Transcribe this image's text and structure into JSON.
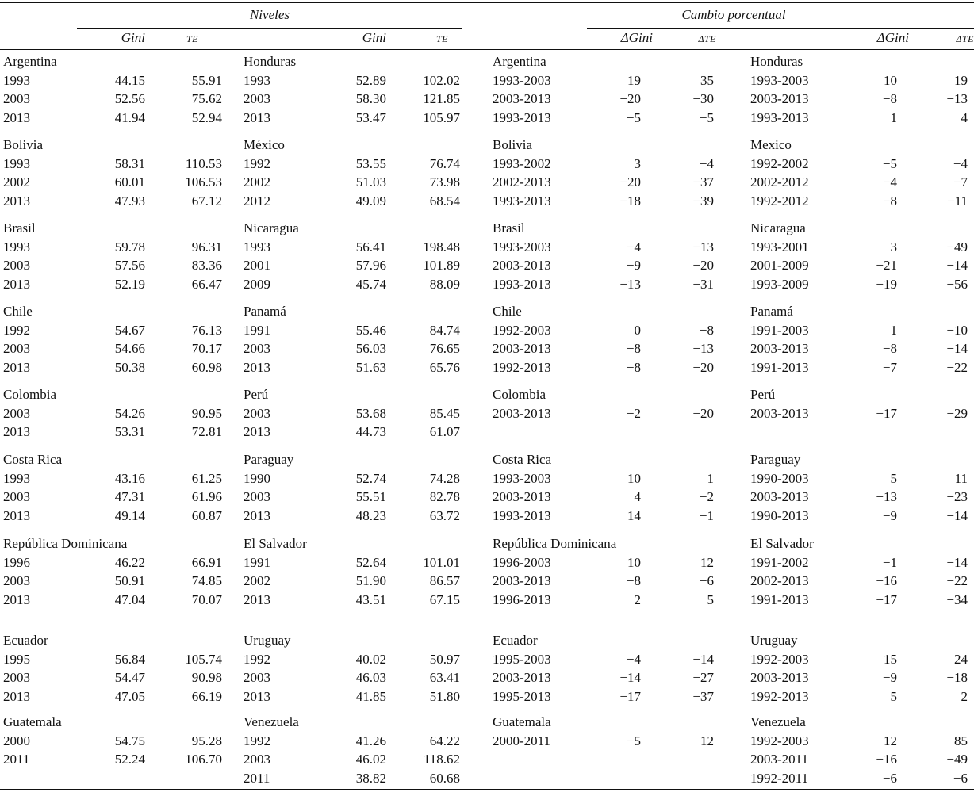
{
  "header": {
    "niveles": "Niveles",
    "cambio": "Cambio porcentual",
    "gini": "Gini",
    "te": "TE",
    "dgini": "ΔGini",
    "dte": "ΔTE"
  },
  "blocks": [
    {
      "nivA": {
        "country": "Argentina",
        "rows": [
          [
            "1993",
            "44.15",
            "55.91"
          ],
          [
            "2003",
            "52.56",
            "75.62"
          ],
          [
            "2013",
            "41.94",
            "52.94"
          ]
        ]
      },
      "nivB": {
        "country": "Honduras",
        "rows": [
          [
            "1993",
            "52.89",
            "102.02"
          ],
          [
            "2003",
            "58.30",
            "121.85"
          ],
          [
            "2013",
            "53.47",
            "105.97"
          ]
        ]
      },
      "camA": {
        "country": "Argentina",
        "rows": [
          [
            "1993-2003",
            "19",
            "35"
          ],
          [
            "2003-2013",
            "−20",
            "−30"
          ],
          [
            "1993-2013",
            "−5",
            "−5"
          ]
        ]
      },
      "camB": {
        "country": "Honduras",
        "rows": [
          [
            "1993-2003",
            "10",
            "19"
          ],
          [
            "2003-2013",
            "−8",
            "−13"
          ],
          [
            "1993-2013",
            "1",
            "4"
          ]
        ]
      }
    },
    {
      "nivA": {
        "country": "Bolivia",
        "rows": [
          [
            "1993",
            "58.31",
            "110.53"
          ],
          [
            "2002",
            "60.01",
            "106.53"
          ],
          [
            "2013",
            "47.93",
            "67.12"
          ]
        ]
      },
      "nivB": {
        "country": "México",
        "rows": [
          [
            "1992",
            "53.55",
            "76.74"
          ],
          [
            "2002",
            "51.03",
            "73.98"
          ],
          [
            "2012",
            "49.09",
            "68.54"
          ]
        ]
      },
      "camA": {
        "country": "Bolivia",
        "rows": [
          [
            "1993-2002",
            "3",
            "−4"
          ],
          [
            "2002-2013",
            "−20",
            "−37"
          ],
          [
            "1993-2013",
            "−18",
            "−39"
          ]
        ]
      },
      "camB": {
        "country": "Mexico",
        "rows": [
          [
            "1992-2002",
            "−5",
            "−4"
          ],
          [
            "2002-2012",
            "−4",
            "−7"
          ],
          [
            "1992-2012",
            "−8",
            "−11"
          ]
        ]
      }
    },
    {
      "nivA": {
        "country": "Brasil",
        "rows": [
          [
            "1993",
            "59.78",
            "96.31"
          ],
          [
            "2003",
            "57.56",
            "83.36"
          ],
          [
            "2013",
            "52.19",
            "66.47"
          ]
        ]
      },
      "nivB": {
        "country": "Nicaragua",
        "rows": [
          [
            "1993",
            "56.41",
            "198.48"
          ],
          [
            "2001",
            "57.96",
            "101.89"
          ],
          [
            "2009",
            "45.74",
            "88.09"
          ]
        ]
      },
      "camA": {
        "country": "Brasil",
        "rows": [
          [
            "1993-2003",
            "−4",
            "−13"
          ],
          [
            "2003-2013",
            "−9",
            "−20"
          ],
          [
            "1993-2013",
            "−13",
            "−31"
          ]
        ]
      },
      "camB": {
        "country": "Nicaragua",
        "rows": [
          [
            "1993-2001",
            "3",
            "−49"
          ],
          [
            "2001-2009",
            "−21",
            "−14"
          ],
          [
            "1993-2009",
            "−19",
            "−56"
          ]
        ]
      }
    },
    {
      "nivA": {
        "country": "Chile",
        "rows": [
          [
            "1992",
            "54.67",
            "76.13"
          ],
          [
            "2003",
            "54.66",
            "70.17"
          ],
          [
            "2013",
            "50.38",
            "60.98"
          ]
        ]
      },
      "nivB": {
        "country": "Panamá",
        "rows": [
          [
            "1991",
            "55.46",
            "84.74"
          ],
          [
            "2003",
            "56.03",
            "76.65"
          ],
          [
            "2013",
            "51.63",
            "65.76"
          ]
        ]
      },
      "camA": {
        "country": "Chile",
        "rows": [
          [
            "1992-2003",
            "0",
            "−8"
          ],
          [
            "2003-2013",
            "−8",
            "−13"
          ],
          [
            "1992-2013",
            "−8",
            "−20"
          ]
        ]
      },
      "camB": {
        "country": "Panamá",
        "rows": [
          [
            "1991-2003",
            "1",
            "−10"
          ],
          [
            "2003-2013",
            "−8",
            "−14"
          ],
          [
            "1991-2013",
            "−7",
            "−22"
          ]
        ]
      }
    },
    {
      "nivA": {
        "country": "Colombia",
        "rows": [
          [
            "2003",
            "54.26",
            "90.95"
          ],
          [
            "2013",
            "53.31",
            "72.81"
          ]
        ]
      },
      "nivB": {
        "country": "Perú",
        "rows": [
          [
            "2003",
            "53.68",
            "85.45"
          ],
          [
            "2013",
            "44.73",
            "61.07"
          ]
        ]
      },
      "camA": {
        "country": "Colombia",
        "rows": [
          [
            "2003-2013",
            "−2",
            "−20"
          ]
        ]
      },
      "camB": {
        "country": "Perú",
        "rows": [
          [
            "2003-2013",
            "−17",
            "−29"
          ]
        ]
      }
    },
    {
      "nivA": {
        "country": "Costa Rica",
        "rows": [
          [
            "1993",
            "43.16",
            "61.25"
          ],
          [
            "2003",
            "47.31",
            "61.96"
          ],
          [
            "2013",
            "49.14",
            "60.87"
          ]
        ]
      },
      "nivB": {
        "country": "Paraguay",
        "rows": [
          [
            "1990",
            "52.74",
            "74.28"
          ],
          [
            "2003",
            "55.51",
            "82.78"
          ],
          [
            "2013",
            "48.23",
            "63.72"
          ]
        ]
      },
      "camA": {
        "country": "Costa Rica",
        "rows": [
          [
            "1993-2003",
            "10",
            "1"
          ],
          [
            "2003-2013",
            "4",
            "−2"
          ],
          [
            "1993-2013",
            "14",
            "−1"
          ]
        ]
      },
      "camB": {
        "country": "Paraguay",
        "rows": [
          [
            "1990-2003",
            "5",
            "11"
          ],
          [
            "2003-2013",
            "−13",
            "−23"
          ],
          [
            "1990-2013",
            "−9",
            "−14"
          ]
        ]
      }
    },
    {
      "nivA": {
        "country": "República Dominicana",
        "rows": [
          [
            "1996",
            "46.22",
            "66.91"
          ],
          [
            "2003",
            "50.91",
            "74.85"
          ],
          [
            "2013",
            "47.04",
            "70.07"
          ]
        ]
      },
      "nivB": {
        "country": "El Salvador",
        "rows": [
          [
            "1991",
            "52.64",
            "101.01"
          ],
          [
            "2002",
            "51.90",
            "86.57"
          ],
          [
            "2013",
            "43.51",
            "67.15"
          ]
        ]
      },
      "camA": {
        "country": "República Dominicana",
        "rows": [
          [
            "1996-2003",
            "10",
            "12"
          ],
          [
            "2003-2013",
            "−8",
            "−6"
          ],
          [
            "1996-2013",
            "2",
            "5"
          ]
        ]
      },
      "camB": {
        "country": "El Salvador",
        "rows": [
          [
            "1991-2002",
            "−1",
            "−14"
          ],
          [
            "2002-2013",
            "−16",
            "−22"
          ],
          [
            "1991-2013",
            "−17",
            "−34"
          ]
        ]
      }
    },
    {
      "nivA": {
        "country": "Ecuador",
        "rows": [
          [
            "1995",
            "56.84",
            "105.74"
          ],
          [
            "2003",
            "54.47",
            "90.98"
          ],
          [
            "2013",
            "47.05",
            "66.19"
          ]
        ]
      },
      "nivB": {
        "country": "Uruguay",
        "rows": [
          [
            "1992",
            "40.02",
            "50.97"
          ],
          [
            "2003",
            "46.03",
            "63.41"
          ],
          [
            "2013",
            "41.85",
            "51.80"
          ]
        ]
      },
      "camA": {
        "country": "Ecuador",
        "rows": [
          [
            "1995-2003",
            "−4",
            "−14"
          ],
          [
            "2003-2013",
            "−14",
            "−27"
          ],
          [
            "1995-2013",
            "−17",
            "−37"
          ]
        ]
      },
      "camB": {
        "country": "Uruguay",
        "rows": [
          [
            "1992-2003",
            "15",
            "24"
          ],
          [
            "2003-2013",
            "−9",
            "−18"
          ],
          [
            "1992-2013",
            "5",
            "2"
          ]
        ]
      }
    },
    {
      "nivA": {
        "country": "Guatemala",
        "rows": [
          [
            "2000",
            "54.75",
            "95.28"
          ],
          [
            "2011",
            "52.24",
            "106.70"
          ]
        ]
      },
      "nivB": {
        "country": "Venezuela",
        "rows": [
          [
            "1992",
            "41.26",
            "64.22"
          ],
          [
            "2003",
            "46.02",
            "118.62"
          ],
          [
            "2011",
            "38.82",
            "60.68"
          ]
        ]
      },
      "camA": {
        "country": "Guatemala",
        "rows": [
          [
            "2000-2011",
            "−5",
            "12"
          ]
        ]
      },
      "camB": {
        "country": "Venezuela",
        "rows": [
          [
            "1992-2003",
            "12",
            "85"
          ],
          [
            "2003-2011",
            "−16",
            "−49"
          ],
          [
            "1992-2011",
            "−6",
            "−6"
          ]
        ]
      }
    }
  ]
}
